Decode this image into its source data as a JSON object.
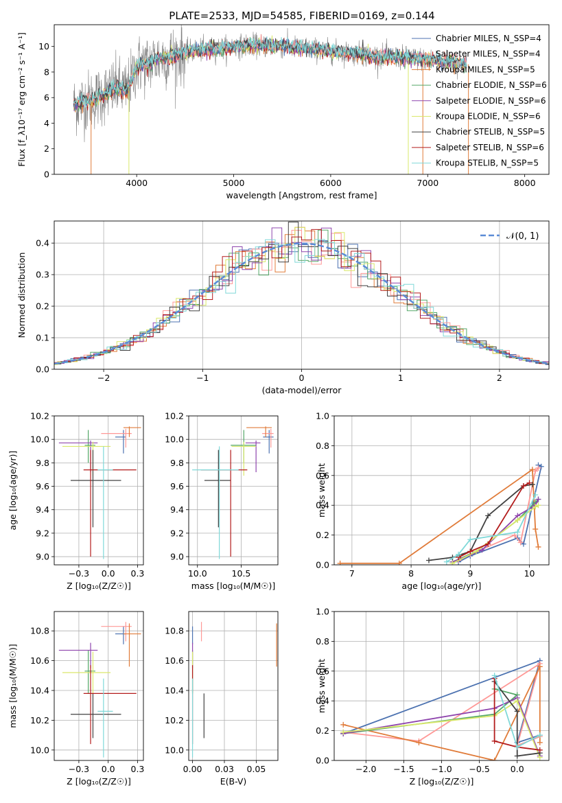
{
  "figure_title": "PLATE=2533, MJD=54585, FIBERID=0169, z=0.144",
  "colors": {
    "Chabrier MILES": "#4c72b0",
    "Salpeter MILES": "#ff9896",
    "Kroupa MILES": "#e07b39",
    "Chabrier ELODIE": "#55a868",
    "Salpeter ELODIE": "#8e44ad",
    "Kroupa ELODIE": "#d9e86a",
    "Chabrier STELIB": "#404040",
    "Salpeter STELIB": "#b31b1b",
    "Kroupa STELIB": "#7fd8d8",
    "gaussian": "#5b8bd6",
    "grid": "#b0b0b0"
  },
  "chart_data": [
    {
      "id": "spectrum",
      "type": "line",
      "xlabel": "wavelength [Angstrom, rest frame]",
      "ylabel": "Flux [f_λ10⁻¹⁷ erg cm⁻² s⁻¹ A⁻¹]",
      "xlim": [
        3150,
        8250
      ],
      "ylim": [
        0,
        11.7
      ],
      "xticks": [
        4000,
        5000,
        6000,
        7000,
        8000
      ],
      "yticks": [
        0,
        2,
        4,
        6,
        8,
        10
      ],
      "legend": [
        "Chabrier MILES, N_SSP=4",
        "Salpeter MILES, N_SSP=4",
        "Kroupa MILES, N_SSP=5",
        "Chabrier ELODIE, N_SSP=6",
        "Salpeter ELODIE, N_SSP=6",
        "Kroupa ELODIE, N_SSP=6",
        "Chabrier STELIB, N_SSP=5",
        "Salpeter STELIB, N_SSP=6",
        "Kroupa STELIB, N_SSP=5"
      ],
      "legend_placement": "upper right",
      "model_continuum": {
        "x": [
          3350,
          3600,
          3800,
          3900,
          3950,
          4000,
          4100,
          4200,
          4400,
          4600,
          4800,
          5000,
          5200,
          5500,
          5800,
          6000,
          6200,
          6400,
          6600,
          6800,
          7000,
          7200,
          7400
        ],
        "y": [
          5.4,
          6.0,
          6.8,
          6.5,
          7.4,
          8.5,
          8.6,
          9.0,
          9.3,
          9.7,
          9.8,
          10.0,
          10.1,
          10.0,
          9.8,
          9.6,
          9.5,
          9.3,
          9.2,
          9.1,
          9.0,
          8.8,
          8.6
        ]
      },
      "data_range": [
        3350,
        7400
      ]
    },
    {
      "id": "residuals",
      "type": "histogram",
      "xlabel": "(data-model)/error",
      "ylabel": "Normed distribution",
      "xlim": [
        -2.5,
        2.5
      ],
      "ylim": [
        0,
        0.47
      ],
      "xticks": [
        -2,
        -1,
        0,
        1,
        2
      ],
      "yticks": [
        0.0,
        0.1,
        0.2,
        0.3,
        0.4
      ],
      "legend": [
        "𝒩(0, 1)"
      ],
      "legend_placement": "upper right",
      "bin_width": 0.1,
      "gaussian": {
        "mu": 0,
        "sigma": 1
      }
    },
    {
      "id": "age-vs-Z",
      "type": "errorbar",
      "xlabel": "Z [log₁₀(Z/Z☉)]",
      "ylabel": "age  [log₁₀(age/yr)]",
      "xlim": [
        -0.46,
        0.3
      ],
      "ylim": [
        8.93,
        10.2
      ],
      "xticks": [
        -0.25,
        0.0,
        0.25
      ],
      "yticks": [
        9.0,
        9.2,
        9.4,
        9.6,
        9.8,
        10.0,
        10.2
      ],
      "points": [
        {
          "model": "Chabrier MILES",
          "x": 0.13,
          "y": 10.02,
          "xerr": [
            0.07,
            0.02
          ],
          "yerr": [
            0.14,
            0.06
          ]
        },
        {
          "model": "Salpeter MILES",
          "x": 0.15,
          "y": 10.05,
          "xerr": [
            0.21,
            0.05
          ],
          "yerr": [
            0.12,
            0.04
          ]
        },
        {
          "model": "Kroupa MILES",
          "x": 0.18,
          "y": 10.1,
          "xerr": [
            0.05,
            0.1
          ],
          "yerr": [
            0.08,
            0.01
          ]
        },
        {
          "model": "Chabrier ELODIE",
          "x": -0.17,
          "y": 9.95,
          "xerr": [
            0.03,
            0.06
          ],
          "yerr": [
            0.15,
            0.13
          ]
        },
        {
          "model": "Salpeter ELODIE",
          "x": -0.15,
          "y": 9.97,
          "xerr": [
            0.27,
            0.06
          ],
          "yerr": [
            0.25,
            0.02
          ]
        },
        {
          "model": "Kroupa ELODIE",
          "x": -0.13,
          "y": 9.94,
          "xerr": [
            0.26,
            0.15
          ],
          "yerr": [
            0.25,
            0.04
          ]
        },
        {
          "model": "Chabrier STELIB",
          "x": -0.13,
          "y": 9.65,
          "xerr": [
            0.19,
            0.24
          ],
          "yerr": [
            0.4,
            0.26
          ]
        },
        {
          "model": "Salpeter STELIB",
          "x": -0.15,
          "y": 9.74,
          "xerr": [
            0.06,
            0.39
          ],
          "yerr": [
            0.74,
            0.17
          ]
        },
        {
          "model": "Kroupa STELIB",
          "x": -0.04,
          "y": 9.74,
          "xerr": [
            0.05,
            0.08
          ],
          "yerr": [
            0.76,
            0.2
          ]
        }
      ]
    },
    {
      "id": "age-vs-mass",
      "type": "errorbar",
      "xlabel": "mass [log₁₀(M/M☉)]",
      "ylabel": "",
      "xlim": [
        9.9,
        10.92
      ],
      "ylim": [
        8.93,
        10.2
      ],
      "xticks": [
        10.0,
        10.5
      ],
      "yticks": [
        9.0,
        9.2,
        9.4,
        9.6,
        9.8,
        10.0,
        10.2
      ],
      "points": [
        {
          "model": "Chabrier MILES",
          "x": 10.82,
          "y": 10.02,
          "xerr": [
            0.07,
            0.05
          ],
          "yerr": [
            0.14,
            0.06
          ]
        },
        {
          "model": "Salpeter MILES",
          "x": 10.84,
          "y": 10.05,
          "xerr": [
            0.1,
            0.03
          ],
          "yerr": [
            0.12,
            0.04
          ]
        },
        {
          "model": "Kroupa MILES",
          "x": 10.78,
          "y": 10.1,
          "xerr": [
            0.22,
            0.07
          ],
          "yerr": [
            0.08,
            0.01
          ]
        },
        {
          "model": "Chabrier ELODIE",
          "x": 10.53,
          "y": 9.95,
          "xerr": [
            0.15,
            0.14
          ],
          "yerr": [
            0.15,
            0.13
          ]
        },
        {
          "model": "Salpeter ELODIE",
          "x": 10.67,
          "y": 9.97,
          "xerr": [
            0.12,
            0.05
          ],
          "yerr": [
            0.25,
            0.02
          ]
        },
        {
          "model": "Kroupa ELODIE",
          "x": 10.53,
          "y": 9.94,
          "xerr": [
            0.14,
            0.14
          ],
          "yerr": [
            0.25,
            0.04
          ]
        },
        {
          "model": "Chabrier STELIB",
          "x": 10.24,
          "y": 9.65,
          "xerr": [
            0.16,
            0.14
          ],
          "yerr": [
            0.4,
            0.26
          ]
        },
        {
          "model": "Salpeter STELIB",
          "x": 10.38,
          "y": 9.74,
          "xerr": [
            0.34,
            0.19
          ],
          "yerr": [
            0.74,
            0.17
          ]
        },
        {
          "model": "Kroupa STELIB",
          "x": 10.25,
          "y": 9.74,
          "xerr": [
            0.31,
            0.22
          ],
          "yerr": [
            0.76,
            0.2
          ]
        }
      ]
    },
    {
      "id": "massweight-vs-age",
      "type": "line",
      "xlabel": "age  [log₁₀(age/yr)]",
      "ylabel": "mass weight",
      "xlim": [
        6.7,
        10.33
      ],
      "ylim": [
        0,
        1
      ],
      "xticks": [
        7,
        8,
        9,
        10
      ],
      "yticks": [
        0.0,
        0.2,
        0.4,
        0.6,
        0.8,
        1.0
      ],
      "series": [
        {
          "model": "Chabrier MILES",
          "x": [
            8.8,
            9.0,
            9.8,
            9.9,
            10.2,
            10.15
          ],
          "y": [
            0.02,
            0.06,
            0.18,
            0.14,
            0.66,
            0.67
          ]
        },
        {
          "model": "Salpeter MILES",
          "x": [
            8.8,
            9.0,
            9.75,
            9.85,
            10.1,
            10.15
          ],
          "y": [
            0.03,
            0.07,
            0.2,
            0.15,
            0.63,
            0.65
          ]
        },
        {
          "model": "Kroupa MILES",
          "x": [
            6.8,
            7.8,
            10.05,
            10.1,
            10.15
          ],
          "y": [
            0.01,
            0.01,
            0.64,
            0.24,
            0.12
          ]
        },
        {
          "model": "Chabrier ELODIE",
          "x": [
            8.7,
            9.1,
            9.8,
            10.1,
            10.15
          ],
          "y": [
            0.02,
            0.09,
            0.3,
            0.42,
            0.44
          ]
        },
        {
          "model": "Salpeter ELODIE",
          "x": [
            8.7,
            9.2,
            9.8,
            10.1,
            10.15
          ],
          "y": [
            0.02,
            0.1,
            0.33,
            0.4,
            0.44
          ]
        },
        {
          "model": "Kroupa ELODIE",
          "x": [
            8.7,
            9.1,
            9.8,
            10.1,
            10.15
          ],
          "y": [
            0.01,
            0.09,
            0.3,
            0.39,
            0.4
          ]
        },
        {
          "model": "Chabrier STELIB",
          "x": [
            8.3,
            8.7,
            9.0,
            9.3,
            9.9,
            10.05
          ],
          "y": [
            0.03,
            0.05,
            0.09,
            0.33,
            0.53,
            0.54
          ]
        },
        {
          "model": "Salpeter STELIB",
          "x": [
            8.8,
            9.0,
            9.3,
            9.9,
            10.0
          ],
          "y": [
            0.05,
            0.09,
            0.14,
            0.53,
            0.55
          ]
        },
        {
          "model": "Kroupa STELIB",
          "x": [
            8.6,
            8.8,
            9.0,
            9.8,
            10.1
          ],
          "y": [
            0.02,
            0.07,
            0.17,
            0.22,
            0.47
          ]
        }
      ]
    },
    {
      "id": "mass-vs-Z",
      "type": "errorbar",
      "xlabel": "Z [log₁₀(Z/Z☉)]",
      "ylabel": "mass [log₁₀(M/M☉)]",
      "xlim": [
        -0.46,
        0.3
      ],
      "ylim": [
        9.93,
        10.93
      ],
      "xticks": [
        -0.25,
        0.0,
        0.25
      ],
      "yticks": [
        10.0,
        10.2,
        10.4,
        10.6,
        10.8
      ],
      "points": [
        {
          "model": "Chabrier MILES",
          "x": 0.13,
          "y": 10.78,
          "xerr": [
            0.07,
            0.02
          ],
          "yerr": [
            0.07,
            0.05
          ]
        },
        {
          "model": "Salpeter MILES",
          "x": 0.15,
          "y": 10.83,
          "xerr": [
            0.21,
            0.05
          ],
          "yerr": [
            0.1,
            0.03
          ]
        },
        {
          "model": "Kroupa MILES",
          "x": 0.18,
          "y": 10.78,
          "xerr": [
            0.05,
            0.1
          ],
          "yerr": [
            0.22,
            0.07
          ]
        },
        {
          "model": "Chabrier ELODIE",
          "x": -0.17,
          "y": 10.53,
          "xerr": [
            0.03,
            0.06
          ],
          "yerr": [
            0.15,
            0.14
          ]
        },
        {
          "model": "Salpeter ELODIE",
          "x": -0.15,
          "y": 10.67,
          "xerr": [
            0.27,
            0.06
          ],
          "yerr": [
            0.12,
            0.05
          ]
        },
        {
          "model": "Kroupa ELODIE",
          "x": -0.13,
          "y": 10.52,
          "xerr": [
            0.26,
            0.15
          ],
          "yerr": [
            0.14,
            0.14
          ]
        },
        {
          "model": "Chabrier STELIB",
          "x": -0.13,
          "y": 10.24,
          "xerr": [
            0.19,
            0.24
          ],
          "yerr": [
            0.16,
            0.14
          ]
        },
        {
          "model": "Salpeter STELIB",
          "x": -0.15,
          "y": 10.38,
          "xerr": [
            0.06,
            0.39
          ],
          "yerr": [
            0.34,
            0.19
          ]
        },
        {
          "model": "Kroupa STELIB",
          "x": -0.04,
          "y": 10.26,
          "xerr": [
            0.05,
            0.08
          ],
          "yerr": [
            0.31,
            0.22
          ]
        }
      ]
    },
    {
      "id": "mass-vs-ebv",
      "type": "errorbar",
      "xlabel": "E(B-V)",
      "ylabel": "",
      "xlim": [
        -0.003,
        0.067
      ],
      "ylim": [
        9.93,
        10.93
      ],
      "xticks": [
        0.0,
        0.025,
        0.05
      ],
      "yticks": [
        10.0,
        10.2,
        10.4,
        10.6,
        10.8
      ],
      "points": [
        {
          "model": "Chabrier MILES",
          "x": 0.0,
          "y": 10.78,
          "yerr": [
            0.07,
            0.05
          ]
        },
        {
          "model": "Salpeter MILES",
          "x": 0.007,
          "y": 10.83,
          "yerr": [
            0.1,
            0.03
          ]
        },
        {
          "model": "Kroupa MILES",
          "x": 0.066,
          "y": 10.78,
          "yerr": [
            0.22,
            0.07
          ]
        },
        {
          "model": "Chabrier ELODIE",
          "x": 0.0,
          "y": 10.53,
          "yerr": [
            0.15,
            0.14
          ]
        },
        {
          "model": "Salpeter ELODIE",
          "x": 0.0,
          "y": 10.67,
          "yerr": [
            0.12,
            0.05
          ]
        },
        {
          "model": "Kroupa ELODIE",
          "x": 0.0,
          "y": 10.52,
          "yerr": [
            0.14,
            0.14
          ]
        },
        {
          "model": "Chabrier STELIB",
          "x": 0.009,
          "y": 10.24,
          "yerr": [
            0.16,
            0.14
          ]
        },
        {
          "model": "Salpeter STELIB",
          "x": 0.0,
          "y": 10.38,
          "yerr": [
            0.34,
            0.19
          ]
        },
        {
          "model": "Kroupa STELIB",
          "x": 0.0,
          "y": 10.26,
          "yerr": [
            0.31,
            0.22
          ]
        }
      ]
    },
    {
      "id": "massweight-vs-Z",
      "type": "line",
      "xlabel": "Z [log₁₀(Z/Z☉)]",
      "ylabel": "mass weight",
      "xlim": [
        -2.42,
        0.42
      ],
      "ylim": [
        0,
        1
      ],
      "xticks": [
        -2.0,
        -1.5,
        -1.0,
        -0.5,
        0.0
      ],
      "yticks": [
        0.0,
        0.2,
        0.4,
        0.6,
        0.8,
        1.0
      ],
      "series": [
        {
          "model": "Chabrier MILES",
          "x": [
            -2.3,
            0.3,
            0.0,
            0.3
          ],
          "y": [
            0.18,
            0.67,
            0.12,
            0.17
          ]
        },
        {
          "model": "Salpeter MILES",
          "x": [
            -2.3,
            -1.3,
            0.3,
            0.0,
            0.3
          ],
          "y": [
            0.19,
            0.13,
            0.65,
            0.1,
            0.16
          ]
        },
        {
          "model": "Kroupa MILES",
          "x": [
            -2.3,
            -1.3,
            -0.3,
            0.3,
            0.3
          ],
          "y": [
            0.24,
            0.12,
            0.0,
            0.63,
            0.12
          ]
        },
        {
          "model": "Chabrier ELODIE",
          "x": [
            -2.3,
            -0.3,
            0.0,
            -0.3
          ],
          "y": [
            0.18,
            0.31,
            0.44,
            0.48
          ]
        },
        {
          "model": "Salpeter ELODIE",
          "x": [
            -2.3,
            -0.3,
            0.0,
            0.3
          ],
          "y": [
            0.18,
            0.35,
            0.42,
            0.03
          ]
        },
        {
          "model": "Kroupa ELODIE",
          "x": [
            -2.3,
            -0.3,
            0.0,
            0.3
          ],
          "y": [
            0.19,
            0.3,
            0.4,
            0.02
          ]
        },
        {
          "model": "Chabrier STELIB",
          "x": [
            -0.3,
            0.0,
            0.0,
            0.3
          ],
          "y": [
            0.53,
            0.33,
            0.03,
            0.05
          ]
        },
        {
          "model": "Salpeter STELIB",
          "x": [
            -0.3,
            -0.3,
            0.0,
            0.3
          ],
          "y": [
            0.55,
            0.13,
            0.09,
            0.07
          ]
        },
        {
          "model": "Kroupa STELIB",
          "x": [
            -0.3,
            0.0,
            0.3
          ],
          "y": [
            0.57,
            0.09,
            0.17
          ]
        }
      ]
    }
  ]
}
